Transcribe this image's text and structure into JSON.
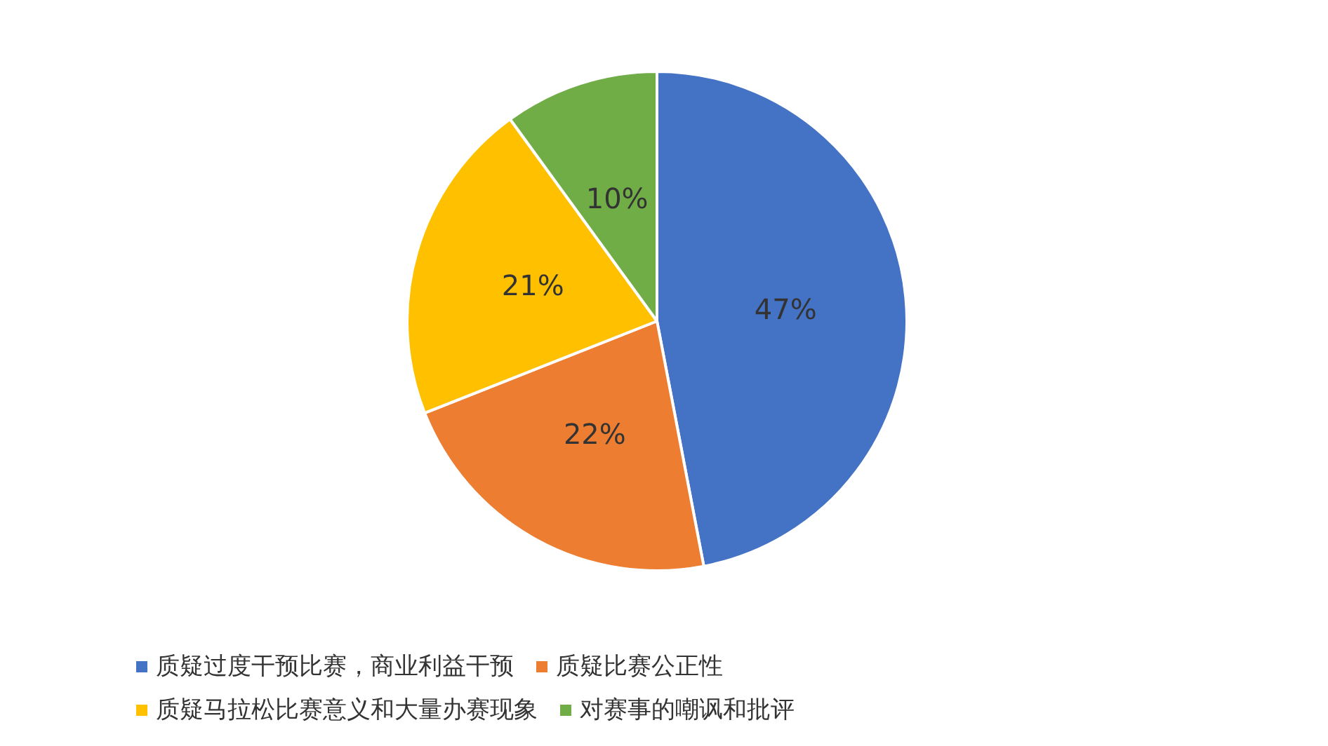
{
  "chart_data": {
    "type": "pie",
    "categories": [
      "质疑过度干预比赛，商业利益干预",
      "质疑比赛公正性",
      "质疑马拉松比赛意义和大量办赛现象",
      "对赛事的嘲讽和批评"
    ],
    "values": [
      47,
      22,
      21,
      10
    ],
    "colors": [
      "#4472c4",
      "#ed7d31",
      "#ffc000",
      "#70ad47"
    ],
    "value_labels": [
      "47%",
      "22%",
      "21%",
      "10%"
    ],
    "legend": "bottom"
  }
}
